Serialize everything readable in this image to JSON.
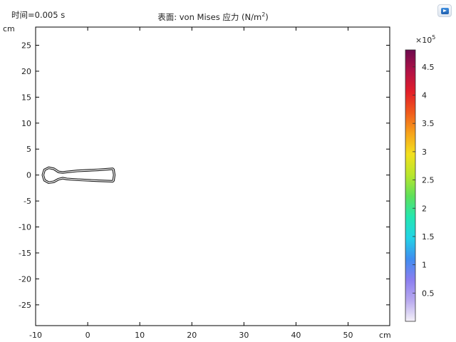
{
  "header": {
    "time_label": "时间=0.005 s",
    "plot_title_main": "表面: von Mises 应力 (N/m",
    "plot_title_sup": "2",
    "plot_title_end": ")"
  },
  "toolbar": {
    "corner_icon": "play-window-icon"
  },
  "chart_data": {
    "type": "surface",
    "x_unit": "cm",
    "y_unit": "cm",
    "xlim": [
      -10,
      58
    ],
    "ylim": [
      -29,
      28.5
    ],
    "x_ticks": [
      -10,
      0,
      10,
      20,
      30,
      40,
      50
    ],
    "y_ticks": [
      25,
      20,
      15,
      10,
      5,
      0,
      -5,
      -10,
      -15,
      -20,
      -25
    ],
    "grid": false,
    "outline": [
      [
        -8.6,
        0.0
      ],
      [
        -8.3,
        1.0
      ],
      [
        -7.5,
        1.4
      ],
      [
        -6.5,
        1.2
      ],
      [
        -5.6,
        0.6
      ],
      [
        -4.8,
        0.5
      ],
      [
        -4.0,
        0.6
      ],
      [
        -2.0,
        0.8
      ],
      [
        0.0,
        0.9
      ],
      [
        2.0,
        1.0
      ],
      [
        4.8,
        1.2
      ],
      [
        4.95,
        1.05
      ],
      [
        5.1,
        0.0
      ],
      [
        4.95,
        -1.05
      ],
      [
        4.8,
        -1.2
      ],
      [
        2.0,
        -1.1
      ],
      [
        0.0,
        -1.0
      ],
      [
        -2.0,
        -0.9
      ],
      [
        -4.0,
        -0.75
      ],
      [
        -4.8,
        -0.6
      ],
      [
        -5.6,
        -0.8
      ],
      [
        -6.5,
        -1.3
      ],
      [
        -7.5,
        -1.45
      ],
      [
        -8.3,
        -1.0
      ]
    ],
    "colorbar": {
      "multiplier_base": "×10",
      "multiplier_exp": "5",
      "range": [
        0,
        4.8
      ],
      "ticks": [
        4.5,
        4,
        3.5,
        3,
        2.5,
        2,
        1.5,
        1,
        0.5
      ],
      "colors": [
        "#f4f1f8",
        "#b8a9ef",
        "#8a7ef0",
        "#3f8ef0",
        "#23d3e6",
        "#24e6b0",
        "#5fe05a",
        "#b8e62d",
        "#f2e01e",
        "#f7a41b",
        "#f05a1c",
        "#e21e2a",
        "#b01247",
        "#6d0a4e"
      ]
    }
  }
}
